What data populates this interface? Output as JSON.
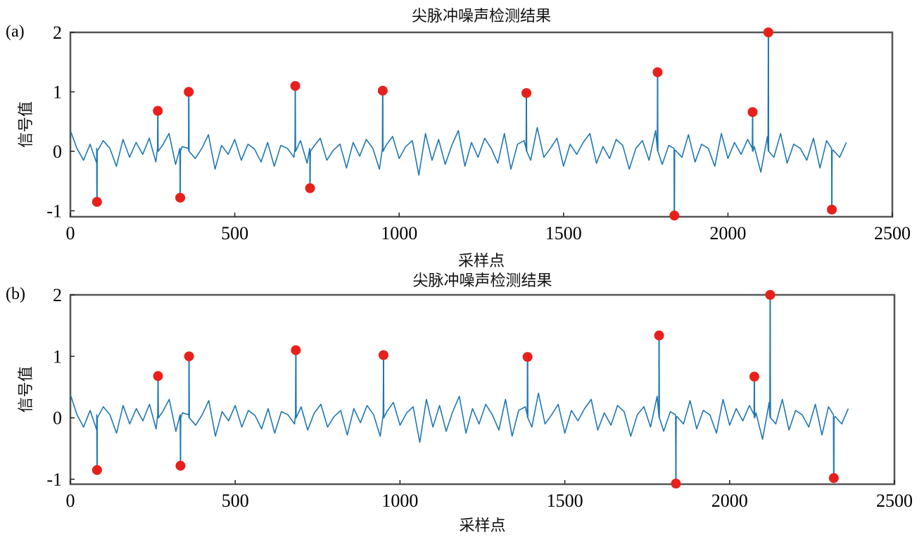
{
  "colors": {
    "signal": "#1f77b4",
    "marker": "#e8201c",
    "axes": "#555555"
  },
  "chart_data": [
    {
      "panel_label": "(a)",
      "type": "line",
      "title": "尖脉冲噪声检测结果",
      "xlabel": "采样点",
      "ylabel": "信号值",
      "xlim": [
        0,
        2500
      ],
      "ylim": [
        -1.1,
        2
      ],
      "xticks": [
        "0",
        "500",
        "1000",
        "1500",
        "2000",
        "2500"
      ],
      "yticks": [
        "-1",
        "0",
        "1",
        "2"
      ],
      "grid": false,
      "signal_step": 20,
      "signal": [
        0.35,
        0.05,
        -0.15,
        0.12,
        -0.2,
        0.18,
        0.05,
        -0.25,
        0.2,
        -0.1,
        0.15,
        -0.05,
        0.22,
        -0.18,
        0.1,
        0.3,
        -0.22,
        0.08,
        0.25,
        -0.12,
        0.05,
        0.28,
        -0.3,
        0.1,
        -0.05,
        0.2,
        -0.15,
        0.12,
        0.04,
        -0.18,
        0.15,
        -0.25,
        0.1,
        0.05,
        -0.1,
        0.18,
        -0.2,
        0.08,
        0.22,
        -0.15,
        0.02,
        0.12,
        -0.28,
        0.15,
        -0.08,
        0.2,
        0.05,
        -0.3,
        0.1,
        0.25,
        -0.12,
        0.08,
        0.18,
        -0.4,
        0.3,
        -0.15,
        0.2,
        -0.22,
        0.1,
        0.35,
        -0.25,
        0.15,
        -0.1,
        0.22,
        0.05,
        -0.2,
        0.3,
        -0.3,
        0.12,
        0.18,
        -0.15,
        0.4,
        -0.1,
        0.05,
        0.22,
        -0.25,
        0.12,
        -0.05,
        0.15,
        0.3,
        -0.2,
        0.08,
        -0.12,
        0.2,
        0.1,
        -0.3,
        0.05,
        0.18,
        -0.15,
        0.35,
        -0.22,
        0.1,
        0.02,
        -0.1,
        0.28,
        -0.18,
        0.12,
        0.05,
        -0.25,
        0.3,
        -0.12,
        0.15,
        -0.05,
        0.2,
        0.08,
        -0.35,
        0.25,
        -0.1,
        0.3,
        -0.2,
        0.12,
        0.05,
        -0.15,
        0.22,
        -0.28,
        0.18,
        0.02,
        -0.1,
        0.15
      ],
      "spikes": [
        {
          "x": 81,
          "y": -0.85
        },
        {
          "x": 266,
          "y": 0.68
        },
        {
          "x": 334,
          "y": -0.78
        },
        {
          "x": 360,
          "y": 1.0
        },
        {
          "x": 684,
          "y": 1.1
        },
        {
          "x": 729,
          "y": -0.62
        },
        {
          "x": 950,
          "y": 1.02
        },
        {
          "x": 1387,
          "y": 0.98
        },
        {
          "x": 1786,
          "y": 1.33
        },
        {
          "x": 1837,
          "y": -1.08
        },
        {
          "x": 2075,
          "y": 0.66
        },
        {
          "x": 2123,
          "y": 2.0
        },
        {
          "x": 2316,
          "y": -0.98
        }
      ]
    },
    {
      "panel_label": "(b)",
      "type": "line",
      "title": "尖脉冲噪声检测结果",
      "xlabel": "采样点",
      "ylabel": "信号值",
      "xlim": [
        0,
        2500
      ],
      "ylim": [
        -1.08,
        2
      ],
      "xticks": [
        "0",
        "500",
        "1000",
        "1500",
        "2000",
        "2500"
      ],
      "yticks": [
        "-1",
        "0",
        "1",
        "2"
      ],
      "grid": false,
      "signal_step": 20,
      "signal": [
        0.38,
        0.05,
        -0.15,
        0.12,
        -0.2,
        0.18,
        0.05,
        -0.25,
        0.2,
        -0.1,
        0.15,
        -0.05,
        0.22,
        -0.18,
        0.1,
        0.3,
        -0.22,
        0.08,
        0.25,
        -0.12,
        0.05,
        0.28,
        -0.3,
        0.1,
        -0.05,
        0.2,
        -0.15,
        0.12,
        0.04,
        -0.18,
        0.15,
        -0.25,
        0.1,
        0.05,
        -0.1,
        0.18,
        -0.2,
        0.08,
        0.22,
        -0.15,
        0.02,
        0.12,
        -0.28,
        0.15,
        -0.08,
        0.2,
        0.05,
        -0.3,
        0.1,
        0.25,
        -0.12,
        0.08,
        0.18,
        -0.4,
        0.3,
        -0.15,
        0.2,
        -0.22,
        0.1,
        0.35,
        -0.25,
        0.15,
        -0.1,
        0.22,
        0.05,
        -0.2,
        0.3,
        -0.3,
        0.12,
        0.18,
        -0.15,
        0.4,
        -0.1,
        0.05,
        0.22,
        -0.25,
        0.12,
        -0.05,
        0.15,
        0.3,
        -0.2,
        0.08,
        -0.12,
        0.2,
        0.1,
        -0.3,
        0.05,
        0.18,
        -0.15,
        0.35,
        -0.22,
        0.1,
        0.02,
        -0.1,
        0.28,
        -0.18,
        0.12,
        0.05,
        -0.25,
        0.3,
        -0.12,
        0.15,
        -0.05,
        0.2,
        0.08,
        -0.35,
        0.25,
        -0.1,
        0.3,
        -0.2,
        0.12,
        0.05,
        -0.15,
        0.22,
        -0.28,
        0.18,
        0.02,
        -0.1,
        0.15
      ],
      "spikes": [
        {
          "x": 81,
          "y": -0.85
        },
        {
          "x": 266,
          "y": 0.68
        },
        {
          "x": 334,
          "y": -0.78
        },
        {
          "x": 360,
          "y": 1.0
        },
        {
          "x": 684,
          "y": 1.1
        },
        {
          "x": 950,
          "y": 1.02
        },
        {
          "x": 1387,
          "y": 0.99
        },
        {
          "x": 1786,
          "y": 1.34
        },
        {
          "x": 1837,
          "y": -1.07
        },
        {
          "x": 2075,
          "y": 0.67
        },
        {
          "x": 2123,
          "y": 2.0
        },
        {
          "x": 2316,
          "y": -0.98
        }
      ]
    }
  ]
}
